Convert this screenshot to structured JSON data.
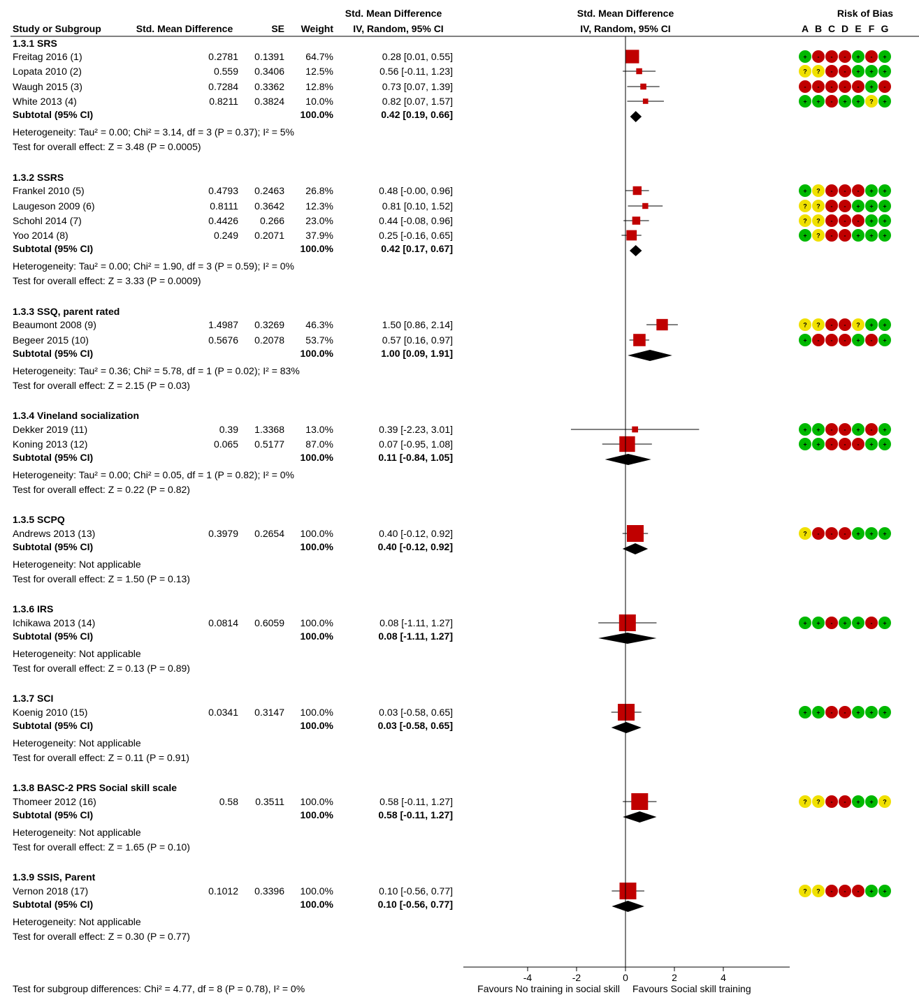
{
  "header": {
    "col_study": "Study or Subgroup",
    "col_smd": "Std. Mean Difference",
    "col_se": "SE",
    "col_weight": "Weight",
    "col_ci_line1": "Std. Mean Difference",
    "col_ci_line2": "IV, Random, 95% CI",
    "plot_line1": "Std. Mean Difference",
    "plot_line2": "IV, Random, 95% CI",
    "rob_title": "Risk of Bias",
    "rob_letters": [
      "A",
      "B",
      "C",
      "D",
      "E",
      "F",
      "G"
    ]
  },
  "colors": {
    "square": "#c00000",
    "diamond": "#000000",
    "rob_low": "#00b800",
    "rob_high": "#c00000",
    "rob_unclear": "#f0e000"
  },
  "chart_data": {
    "type": "forest",
    "x_axis": {
      "range": [
        -6.8,
        6.8
      ],
      "ticks": [
        -4,
        -2,
        0,
        2,
        4
      ],
      "tick_labels": [
        "-4",
        "-2",
        "0",
        "2",
        "4"
      ],
      "label_left": "Favours No training in social skill",
      "label_right": "Favours Social skill training"
    },
    "groups": [
      {
        "title": "1.3.1 SRS",
        "studies": [
          {
            "name": "Freitag 2016 (1)",
            "smd": "0.2781",
            "se": "0.1391",
            "weight": "64.7%",
            "ci_text": "0.28 [0.01, 0.55]",
            "est": 0.28,
            "lo": 0.01,
            "hi": 0.55,
            "w": 64.7,
            "rob": [
              "+",
              "-",
              "-",
              "-",
              "+",
              "-",
              "+"
            ]
          },
          {
            "name": "Lopata 2010 (2)",
            "smd": "0.559",
            "se": "0.3406",
            "weight": "12.5%",
            "ci_text": "0.56 [-0.11, 1.23]",
            "est": 0.56,
            "lo": -0.11,
            "hi": 1.23,
            "w": 12.5,
            "rob": [
              "?",
              "?",
              "-",
              "-",
              "+",
              "+",
              "+"
            ]
          },
          {
            "name": "Waugh 2015 (3)",
            "smd": "0.7284",
            "se": "0.3362",
            "weight": "12.8%",
            "ci_text": "0.73 [0.07, 1.39]",
            "est": 0.73,
            "lo": 0.07,
            "hi": 1.39,
            "w": 12.8,
            "rob": [
              "-",
              "-",
              "-",
              "-",
              "-",
              "+",
              "-"
            ]
          },
          {
            "name": "White 2013 (4)",
            "smd": "0.8211",
            "se": "0.3824",
            "weight": "10.0%",
            "ci_text": "0.82 [0.07, 1.57]",
            "est": 0.82,
            "lo": 0.07,
            "hi": 1.57,
            "w": 10.0,
            "rob": [
              "+",
              "+",
              "-",
              "+",
              "+",
              "?",
              "+"
            ]
          }
        ],
        "subtotal": {
          "label": "Subtotal (95% CI)",
          "weight": "100.0%",
          "ci_text": "0.42 [0.19, 0.66]",
          "est": 0.42,
          "lo": 0.19,
          "hi": 0.66
        },
        "heterogeneity": "Heterogeneity: Tau² = 0.00; Chi² = 3.14, df = 3 (P = 0.37); I² = 5%",
        "overall": "Test for overall effect: Z = 3.48 (P = 0.0005)"
      },
      {
        "title": "1.3.2 SSRS",
        "studies": [
          {
            "name": "Frankel 2010 (5)",
            "smd": "0.4793",
            "se": "0.2463",
            "weight": "26.8%",
            "ci_text": "0.48 [-0.00, 0.96]",
            "est": 0.48,
            "lo": 0.0,
            "hi": 0.96,
            "w": 26.8,
            "rob": [
              "+",
              "?",
              "-",
              "-",
              "-",
              "+",
              "+"
            ]
          },
          {
            "name": "Laugeson 2009 (6)",
            "smd": "0.8111",
            "se": "0.3642",
            "weight": "12.3%",
            "ci_text": "0.81 [0.10, 1.52]",
            "est": 0.81,
            "lo": 0.1,
            "hi": 1.52,
            "w": 12.3,
            "rob": [
              "?",
              "?",
              "-",
              "-",
              "+",
              "+",
              "+"
            ]
          },
          {
            "name": "Schohl 2014 (7)",
            "smd": "0.4426",
            "se": "0.266",
            "weight": "23.0%",
            "ci_text": "0.44 [-0.08, 0.96]",
            "est": 0.44,
            "lo": -0.08,
            "hi": 0.96,
            "w": 23.0,
            "rob": [
              "?",
              "?",
              "-",
              "-",
              "-",
              "+",
              "+"
            ]
          },
          {
            "name": "Yoo 2014 (8)",
            "smd": "0.249",
            "se": "0.2071",
            "weight": "37.9%",
            "ci_text": "0.25 [-0.16, 0.65]",
            "est": 0.25,
            "lo": -0.16,
            "hi": 0.65,
            "w": 37.9,
            "rob": [
              "+",
              "?",
              "-",
              "-",
              "+",
              "+",
              "+"
            ]
          }
        ],
        "subtotal": {
          "label": "Subtotal (95% CI)",
          "weight": "100.0%",
          "ci_text": "0.42 [0.17, 0.67]",
          "est": 0.42,
          "lo": 0.17,
          "hi": 0.67
        },
        "heterogeneity": "Heterogeneity: Tau² = 0.00; Chi² = 1.90, df = 3 (P = 0.59); I² = 0%",
        "overall": "Test for overall effect: Z = 3.33 (P = 0.0009)"
      },
      {
        "title": "1.3.3 SSQ, parent rated",
        "studies": [
          {
            "name": "Beaumont 2008 (9)",
            "smd": "1.4987",
            "se": "0.3269",
            "weight": "46.3%",
            "ci_text": "1.50 [0.86, 2.14]",
            "est": 1.5,
            "lo": 0.86,
            "hi": 2.14,
            "w": 46.3,
            "rob": [
              "?",
              "?",
              "-",
              "-",
              "?",
              "+",
              "+"
            ]
          },
          {
            "name": "Begeer 2015 (10)",
            "smd": "0.5676",
            "se": "0.2078",
            "weight": "53.7%",
            "ci_text": "0.57 [0.16, 0.97]",
            "est": 0.57,
            "lo": 0.16,
            "hi": 0.97,
            "w": 53.7,
            "rob": [
              "+",
              "-",
              "-",
              "-",
              "+",
              "-",
              "+"
            ]
          }
        ],
        "subtotal": {
          "label": "Subtotal (95% CI)",
          "weight": "100.0%",
          "ci_text": "1.00 [0.09, 1.91]",
          "est": 1.0,
          "lo": 0.09,
          "hi": 1.91
        },
        "heterogeneity": "Heterogeneity: Tau² = 0.36; Chi² = 5.78, df = 1 (P = 0.02); I² = 83%",
        "overall": "Test for overall effect: Z = 2.15 (P = 0.03)"
      },
      {
        "title": "1.3.4 Vineland socialization",
        "studies": [
          {
            "name": "Dekker 2019 (11)",
            "smd": "0.39",
            "se": "1.3368",
            "weight": "13.0%",
            "ci_text": "0.39 [-2.23, 3.01]",
            "est": 0.39,
            "lo": -2.23,
            "hi": 3.01,
            "w": 13.0,
            "rob": [
              "+",
              "+",
              "-",
              "-",
              "+",
              "-",
              "+"
            ]
          },
          {
            "name": "Koning 2013 (12)",
            "smd": "0.065",
            "se": "0.5177",
            "weight": "87.0%",
            "ci_text": "0.07 [-0.95, 1.08]",
            "est": 0.07,
            "lo": -0.95,
            "hi": 1.08,
            "w": 87.0,
            "rob": [
              "+",
              "+",
              "-",
              "-",
              "-",
              "+",
              "+"
            ]
          }
        ],
        "subtotal": {
          "label": "Subtotal (95% CI)",
          "weight": "100.0%",
          "ci_text": "0.11 [-0.84, 1.05]",
          "est": 0.11,
          "lo": -0.84,
          "hi": 1.05
        },
        "heterogeneity": "Heterogeneity: Tau² = 0.00; Chi² = 0.05, df = 1 (P = 0.82); I² = 0%",
        "overall": "Test for overall effect: Z = 0.22 (P = 0.82)"
      },
      {
        "title": "1.3.5 SCPQ",
        "studies": [
          {
            "name": "Andrews 2013 (13)",
            "smd": "0.3979",
            "se": "0.2654",
            "weight": "100.0%",
            "ci_text": "0.40 [-0.12, 0.92]",
            "est": 0.4,
            "lo": -0.12,
            "hi": 0.92,
            "w": 100,
            "rob": [
              "?",
              "-",
              "-",
              "-",
              "+",
              "+",
              "+"
            ]
          }
        ],
        "subtotal": {
          "label": "Subtotal (95% CI)",
          "weight": "100.0%",
          "ci_text": "0.40 [-0.12, 0.92]",
          "est": 0.4,
          "lo": -0.12,
          "hi": 0.92
        },
        "heterogeneity": "Heterogeneity: Not applicable",
        "overall": "Test for overall effect: Z = 1.50 (P = 0.13)"
      },
      {
        "title": "1.3.6 IRS",
        "studies": [
          {
            "name": "Ichikawa 2013 (14)",
            "smd": "0.0814",
            "se": "0.6059",
            "weight": "100.0%",
            "ci_text": "0.08 [-1.11, 1.27]",
            "est": 0.08,
            "lo": -1.11,
            "hi": 1.27,
            "w": 100,
            "rob": [
              "+",
              "+",
              "-",
              "+",
              "+",
              "-",
              "+"
            ]
          }
        ],
        "subtotal": {
          "label": "Subtotal (95% CI)",
          "weight": "100.0%",
          "ci_text": "0.08 [-1.11, 1.27]",
          "est": 0.08,
          "lo": -1.11,
          "hi": 1.27
        },
        "heterogeneity": "Heterogeneity: Not applicable",
        "overall": "Test for overall effect: Z = 0.13 (P = 0.89)"
      },
      {
        "title": "1.3.7 SCI",
        "studies": [
          {
            "name": "Koenig 2010 (15)",
            "smd": "0.0341",
            "se": "0.3147",
            "weight": "100.0%",
            "ci_text": "0.03 [-0.58, 0.65]",
            "est": 0.03,
            "lo": -0.58,
            "hi": 0.65,
            "w": 100,
            "rob": [
              "+",
              "+",
              "-",
              "-",
              "+",
              "+",
              "+"
            ]
          }
        ],
        "subtotal": {
          "label": "Subtotal (95% CI)",
          "weight": "100.0%",
          "ci_text": "0.03 [-0.58, 0.65]",
          "est": 0.03,
          "lo": -0.58,
          "hi": 0.65
        },
        "heterogeneity": "Heterogeneity: Not applicable",
        "overall": "Test for overall effect: Z = 0.11 (P = 0.91)"
      },
      {
        "title": "1.3.8 BASC-2 PRS Social skill scale",
        "studies": [
          {
            "name": "Thomeer 2012 (16)",
            "smd": "0.58",
            "se": "0.3511",
            "weight": "100.0%",
            "ci_text": "0.58 [-0.11, 1.27]",
            "est": 0.58,
            "lo": -0.11,
            "hi": 1.27,
            "w": 100,
            "rob": [
              "?",
              "?",
              "-",
              "-",
              "+",
              "+",
              "?"
            ]
          }
        ],
        "subtotal": {
          "label": "Subtotal (95% CI)",
          "weight": "100.0%",
          "ci_text": "0.58 [-0.11, 1.27]",
          "est": 0.58,
          "lo": -0.11,
          "hi": 1.27
        },
        "heterogeneity": "Heterogeneity: Not applicable",
        "overall": "Test for overall effect: Z = 1.65 (P = 0.10)"
      },
      {
        "title": "1.3.9 SSIS, Parent",
        "studies": [
          {
            "name": "Vernon 2018 (17)",
            "smd": "0.1012",
            "se": "0.3396",
            "weight": "100.0%",
            "ci_text": "0.10 [-0.56, 0.77]",
            "est": 0.1,
            "lo": -0.56,
            "hi": 0.77,
            "w": 100,
            "rob": [
              "?",
              "?",
              "-",
              "-",
              "-",
              "+",
              "+"
            ]
          }
        ],
        "subtotal": {
          "label": "Subtotal (95% CI)",
          "weight": "100.0%",
          "ci_text": "0.10 [-0.56, 0.77]",
          "est": 0.1,
          "lo": -0.56,
          "hi": 0.77
        },
        "heterogeneity": "Heterogeneity: Not applicable",
        "overall": "Test for overall effect: Z = 0.30 (P = 0.77)"
      }
    ],
    "footer": "Test for subgroup differences: Chi² = 4.77, df = 8 (P = 0.78), I² = 0%"
  }
}
